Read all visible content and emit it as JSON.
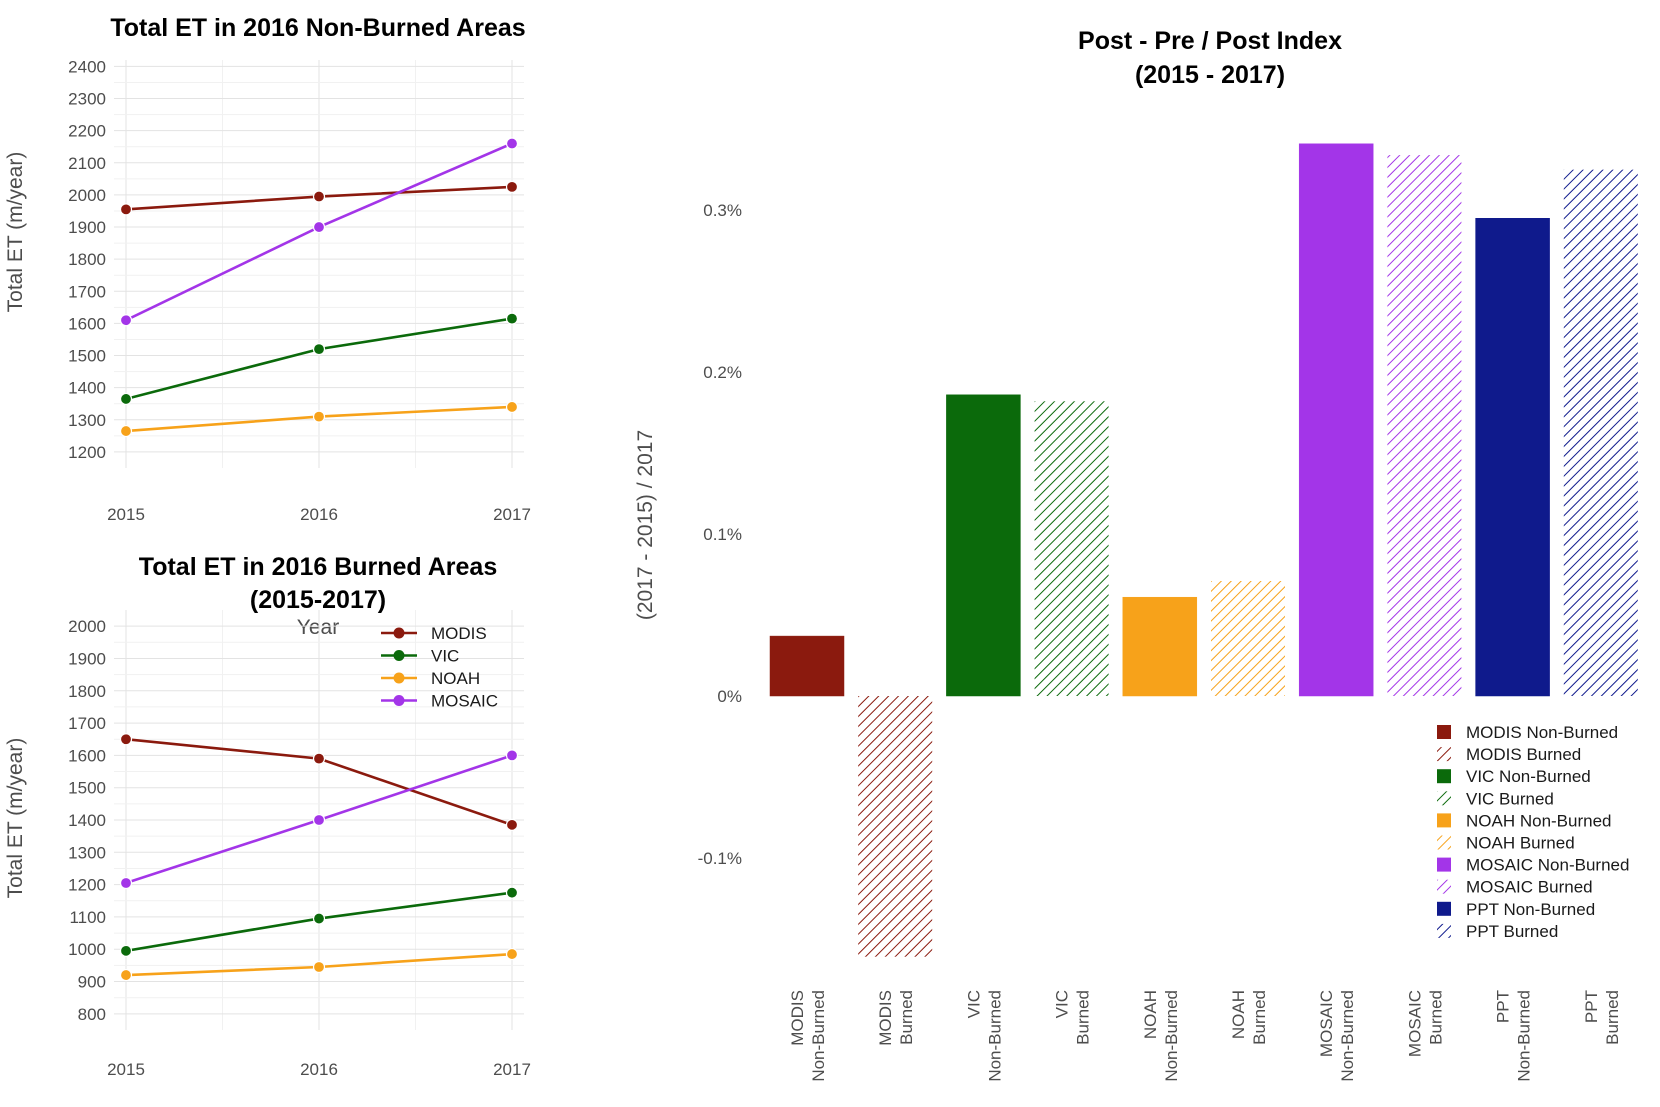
{
  "chart_data": [
    {
      "type": "line",
      "title": "Total ET in 2016 Non-Burned Areas",
      "xlabel": "",
      "ylabel": "Total ET (m/year)",
      "x": [
        2015,
        2016,
        2017
      ],
      "x_tick_labels": [
        "2015",
        "2016",
        "2017"
      ],
      "ylim": [
        1150,
        2420
      ],
      "y_ticks": [
        1200,
        1300,
        1400,
        1500,
        1600,
        1700,
        1800,
        1900,
        2000,
        2100,
        2200,
        2300,
        2400
      ],
      "y_tick_labels": [
        "1200",
        "1300",
        "1400",
        "1500",
        "1600",
        "1700",
        "1800",
        "1900",
        "2000",
        "2100",
        "2200",
        "2300",
        "2400"
      ],
      "grid": true,
      "series": [
        {
          "name": "MODIS",
          "color": "#8b1a0e",
          "values": [
            1955,
            1995,
            2025
          ]
        },
        {
          "name": "VIC",
          "color": "#0b6a0b",
          "values": [
            1365,
            1520,
            1615
          ]
        },
        {
          "name": "NOAH",
          "color": "#f7a21a",
          "values": [
            1265,
            1310,
            1340
          ]
        },
        {
          "name": "MOSAIC",
          "color": "#a335e8",
          "values": [
            1610,
            1900,
            2160
          ]
        }
      ]
    },
    {
      "type": "line",
      "title": "Total ET in 2016 Burned Areas",
      "subtitle": "(2015-2017)",
      "xlabel": "Year",
      "ylabel": "Total ET (m/year)",
      "x": [
        2015,
        2016,
        2017
      ],
      "x_tick_labels": [
        "2015",
        "2016",
        "2017"
      ],
      "ylim": [
        750,
        2050
      ],
      "y_ticks": [
        800,
        900,
        1000,
        1100,
        1200,
        1300,
        1400,
        1500,
        1600,
        1700,
        1800,
        1900,
        2000
      ],
      "y_tick_labels": [
        "800",
        "900",
        "1000",
        "1100",
        "1200",
        "1300",
        "1400",
        "1500",
        "1600",
        "1700",
        "1800",
        "1900",
        "2000"
      ],
      "grid": true,
      "legend": "top-right",
      "series": [
        {
          "name": "MODIS",
          "color": "#8b1a0e",
          "values": [
            1650,
            1590,
            1385
          ]
        },
        {
          "name": "VIC",
          "color": "#0b6a0b",
          "values": [
            995,
            1095,
            1175
          ]
        },
        {
          "name": "NOAH",
          "color": "#f7a21a",
          "values": [
            920,
            945,
            985
          ]
        },
        {
          "name": "MOSAIC",
          "color": "#a335e8",
          "values": [
            1205,
            1400,
            1600
          ]
        }
      ]
    },
    {
      "type": "bar",
      "title": "Post - Pre / Post Index",
      "subtitle": "(2015 - 2017)",
      "xlabel": "",
      "ylabel": "(2017 - 2015) / 2017",
      "ylim": [
        -0.17,
        0.36
      ],
      "y_ticks": [
        -0.1,
        0.0,
        0.1,
        0.2,
        0.3
      ],
      "y_tick_labels": [
        "-0.1%",
        "0%",
        "0.1%",
        "0.2%",
        "0.3%"
      ],
      "grid": false,
      "legend": "bottom-right",
      "bars": [
        {
          "label": [
            "MODIS",
            "Non-Burned"
          ],
          "legend": "MODIS  Non-Burned",
          "value": 0.037,
          "color": "#8b1a0e",
          "hatched": false
        },
        {
          "label": [
            "MODIS",
            "Burned"
          ],
          "legend": "MODIS  Burned",
          "value": -0.161,
          "color": "#8b1a0e",
          "hatched": true
        },
        {
          "label": [
            "VIC",
            "Non-Burned"
          ],
          "legend": "VIC  Non-Burned",
          "value": 0.186,
          "color": "#0b6a0b",
          "hatched": false
        },
        {
          "label": [
            "VIC",
            "Burned"
          ],
          "legend": "VIC  Burned",
          "value": 0.182,
          "color": "#0b6a0b",
          "hatched": true
        },
        {
          "label": [
            "NOAH",
            "Non-Burned"
          ],
          "legend": "NOAH  Non-Burned",
          "value": 0.061,
          "color": "#f7a21a",
          "hatched": false
        },
        {
          "label": [
            "NOAH",
            "Burned"
          ],
          "legend": "NOAH  Burned",
          "value": 0.071,
          "color": "#f7a21a",
          "hatched": true
        },
        {
          "label": [
            "MOSAIC",
            "Non-Burned"
          ],
          "legend": "MOSAIC  Non-Burned",
          "value": 0.341,
          "color": "#a335e8",
          "hatched": false
        },
        {
          "label": [
            "MOSAIC",
            "Burned"
          ],
          "legend": "MOSAIC  Burned",
          "value": 0.334,
          "color": "#a335e8",
          "hatched": true
        },
        {
          "label": [
            "PPT",
            "Non-Burned"
          ],
          "legend": "PPT  Non-Burned",
          "value": 0.295,
          "color": "#0f1a8c",
          "hatched": false
        },
        {
          "label": [
            "PPT",
            "Burned"
          ],
          "legend": "PPT  Burned",
          "value": 0.325,
          "color": "#0f1a8c",
          "hatched": true
        }
      ]
    }
  ]
}
